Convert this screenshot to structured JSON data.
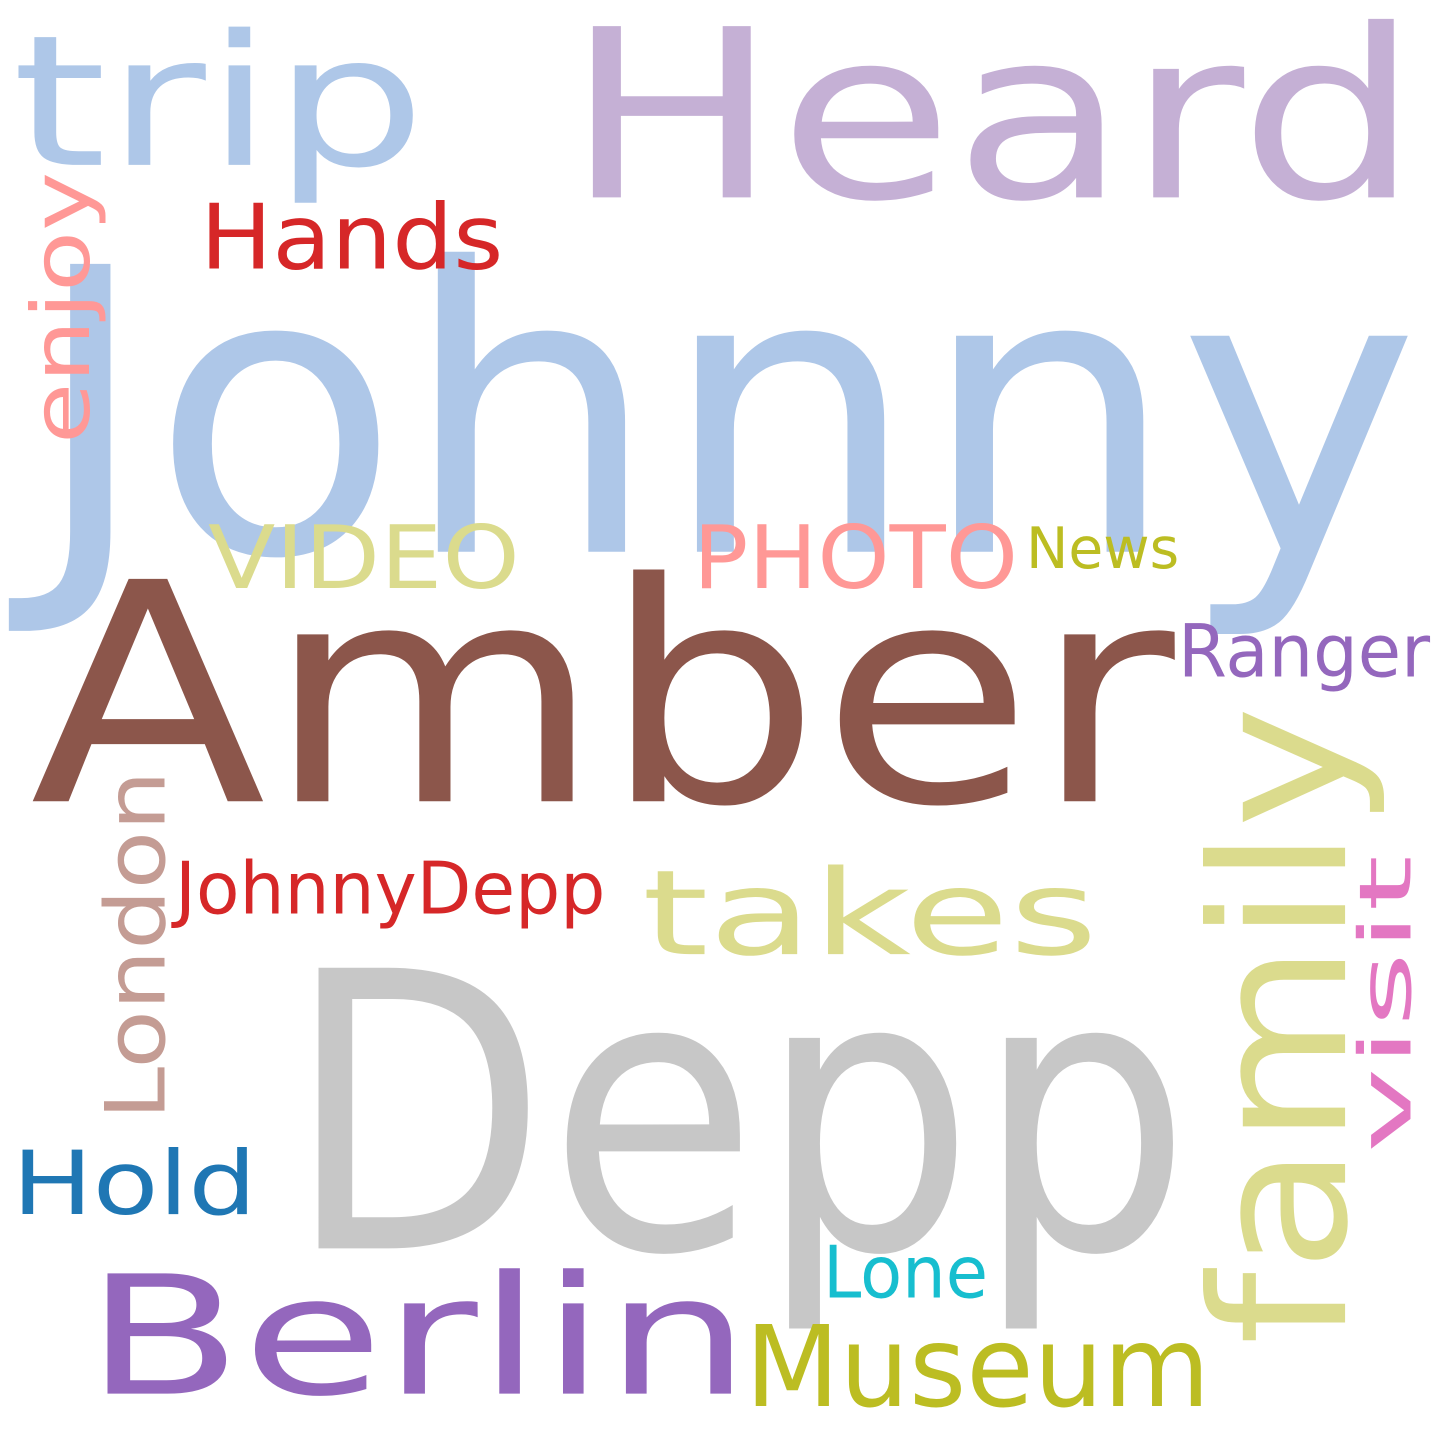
{
  "words": [
    {
      "key": "johnny",
      "text": "Johnny",
      "color": "#aec7e8",
      "orientation": "horizontal"
    },
    {
      "key": "heard",
      "text": "Heard",
      "color": "#c5b0d5",
      "orientation": "horizontal"
    },
    {
      "key": "amber",
      "text": "Amber",
      "color": "#8c564b",
      "orientation": "horizontal"
    },
    {
      "key": "depp",
      "text": "Depp",
      "color": "#c7c7c7",
      "orientation": "horizontal"
    },
    {
      "key": "trip",
      "text": "trip",
      "color": "#aec7e8",
      "orientation": "horizontal"
    },
    {
      "key": "hands",
      "text": "Hands",
      "color": "#d62728",
      "orientation": "horizontal"
    },
    {
      "key": "enjoy",
      "text": "enjoy",
      "color": "#ff9896",
      "orientation": "vertical"
    },
    {
      "key": "video",
      "text": "VIDEO",
      "color": "#dbdb8d",
      "orientation": "horizontal"
    },
    {
      "key": "photo",
      "text": "PHOTO",
      "color": "#ff9896",
      "orientation": "horizontal"
    },
    {
      "key": "news",
      "text": "News",
      "color": "#bcbd22",
      "orientation": "horizontal"
    },
    {
      "key": "ranger",
      "text": "Ranger",
      "color": "#9467bd",
      "orientation": "horizontal"
    },
    {
      "key": "takes",
      "text": "takes",
      "color": "#dbdb8d",
      "orientation": "horizontal"
    },
    {
      "key": "family",
      "text": "family",
      "color": "#dbdb8d",
      "orientation": "vertical"
    },
    {
      "key": "visit",
      "text": "visit",
      "color": "#e377c2",
      "orientation": "vertical"
    },
    {
      "key": "london",
      "text": "London",
      "color": "#c49c94",
      "orientation": "vertical"
    },
    {
      "key": "johnnydepp",
      "text": "JohnnyDepp",
      "color": "#d62728",
      "orientation": "horizontal"
    },
    {
      "key": "hold",
      "text": "Hold",
      "color": "#1f77b4",
      "orientation": "horizontal"
    },
    {
      "key": "berlin",
      "text": "Berlin",
      "color": "#9467bd",
      "orientation": "horizontal"
    },
    {
      "key": "museum",
      "text": "Museum",
      "color": "#bcbd22",
      "orientation": "horizontal"
    },
    {
      "key": "lone",
      "text": "Lone",
      "color": "#17becf",
      "orientation": "horizontal"
    }
  ]
}
